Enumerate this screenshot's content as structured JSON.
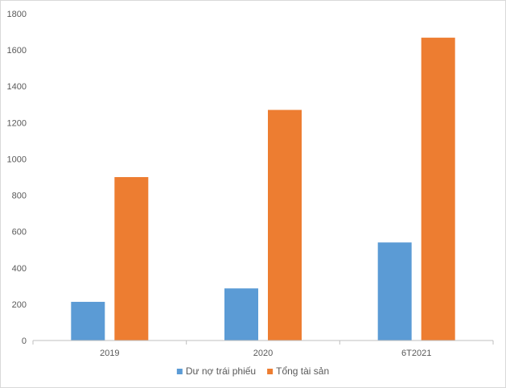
{
  "chart_data": {
    "type": "bar",
    "categories": [
      "2019",
      "2020",
      "6T2021"
    ],
    "series": [
      {
        "name": "Dư nợ trái phiếu",
        "values": [
          213,
          287,
          540
        ],
        "color": "#5b9bd5"
      },
      {
        "name": "Tổng tài sản",
        "values": [
          900,
          1270,
          1668
        ],
        "color": "#ed7d31"
      }
    ],
    "title": "",
    "xlabel": "",
    "ylabel": "",
    "ylim": [
      0,
      1800
    ],
    "yticks": [
      0,
      200,
      400,
      600,
      800,
      1000,
      1200,
      1400,
      1600,
      1800
    ],
    "grid": false,
    "legend": "bottom-center",
    "axis_color": "#bfbfbf"
  }
}
